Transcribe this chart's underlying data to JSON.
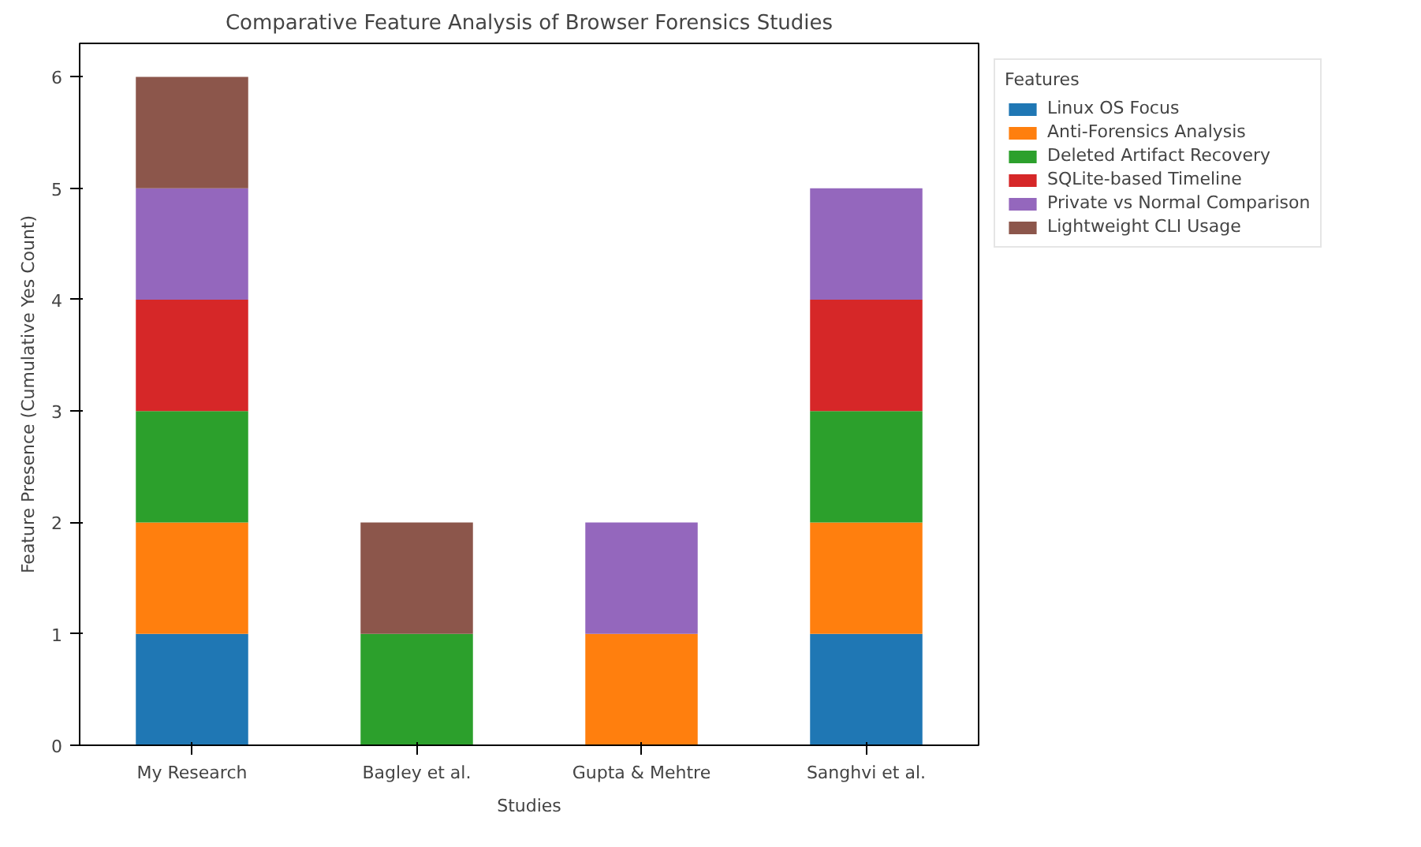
{
  "chart_data": {
    "type": "bar",
    "stacked": true,
    "title": "Comparative Feature Analysis of Browser Forensics Studies",
    "xlabel": "Studies",
    "ylabel": "Feature Presence (Cumulative Yes Count)",
    "legend_title": "Features",
    "legend": "top right",
    "grid": false,
    "categories": [
      "My Research",
      "Bagley et al.",
      "Gupta & Mehtre",
      "Sanghvi et al."
    ],
    "ylim": [
      0,
      6.3
    ],
    "yticks": [
      0,
      1,
      2,
      3,
      4,
      5,
      6
    ],
    "series": [
      {
        "name": "Linux OS Focus",
        "color": "#1f77b4",
        "values": [
          1,
          0,
          0,
          1
        ]
      },
      {
        "name": "Anti-Forensics Analysis",
        "color": "#ff7f0e",
        "values": [
          1,
          0,
          1,
          1
        ]
      },
      {
        "name": "Deleted Artifact Recovery",
        "color": "#2ca02c",
        "values": [
          1,
          1,
          0,
          1
        ]
      },
      {
        "name": "SQLite-based Timeline",
        "color": "#d62728",
        "values": [
          1,
          0,
          0,
          1
        ]
      },
      {
        "name": "Private vs Normal Comparison",
        "color": "#9467bd",
        "values": [
          1,
          0,
          1,
          1
        ]
      },
      {
        "name": "Lightweight CLI Usage",
        "color": "#8c564b",
        "values": [
          1,
          1,
          0,
          0
        ]
      }
    ]
  }
}
